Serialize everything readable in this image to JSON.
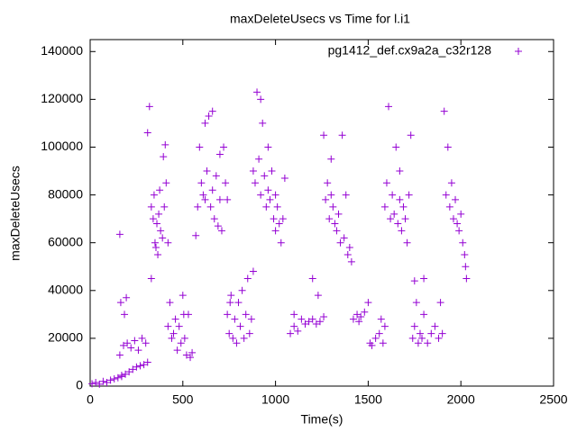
{
  "chart_data": {
    "type": "scatter",
    "title": "maxDeleteUsecs vs Time for l.i1",
    "x_label": "Time(s)",
    "y_label": "maxDeleteUsecs",
    "xlim": [
      0,
      2500
    ],
    "ylim": [
      0,
      145000
    ],
    "xticks": [
      0,
      500,
      1000,
      1500,
      2000,
      2500
    ],
    "yticks": [
      0,
      20000,
      40000,
      60000,
      80000,
      100000,
      120000,
      140000
    ],
    "legend": "upper right",
    "series": [
      {
        "name": "pg1412_def.cx9a2a_c32r128",
        "color": "#9400d3",
        "x": [
          10,
          30,
          50,
          70,
          90,
          110,
          130,
          150,
          170,
          190,
          210,
          230,
          250,
          270,
          290,
          310,
          160,
          170,
          160,
          180,
          200,
          220,
          240,
          260,
          280,
          300,
          165,
          185,
          195,
          310,
          320,
          330,
          340,
          350,
          360,
          370,
          380,
          390,
          400,
          410,
          420,
          345,
          365,
          375,
          395,
          405,
          330,
          355,
          420,
          430,
          440,
          450,
          460,
          470,
          480,
          490,
          500,
          510,
          520,
          530,
          540,
          550,
          505,
          570,
          580,
          590,
          600,
          610,
          620,
          630,
          640,
          650,
          660,
          670,
          680,
          690,
          700,
          710,
          720,
          730,
          740,
          620,
          660,
          700,
          740,
          750,
          760,
          770,
          780,
          790,
          800,
          810,
          820,
          830,
          840,
          850,
          860,
          870,
          880,
          755,
          880,
          890,
          900,
          910,
          920,
          930,
          940,
          950,
          960,
          970,
          980,
          990,
          1000,
          1010,
          1020,
          1030,
          1040,
          1050,
          920,
          960,
          1000,
          1080,
          1100,
          1120,
          1140,
          1160,
          1180,
          1200,
          1220,
          1240,
          1260,
          1200,
          1230,
          1100,
          1260,
          1270,
          1280,
          1290,
          1300,
          1310,
          1320,
          1330,
          1340,
          1350,
          1360,
          1370,
          1380,
          1390,
          1400,
          1410,
          1300,
          1420,
          1440,
          1460,
          1480,
          1500,
          1450,
          1510,
          1520,
          1540,
          1560,
          1580,
          1570,
          1590,
          1590,
          1600,
          1610,
          1620,
          1630,
          1640,
          1650,
          1660,
          1670,
          1680,
          1690,
          1700,
          1710,
          1720,
          1730,
          1670,
          1740,
          1750,
          1760,
          1770,
          1780,
          1790,
          1800,
          1820,
          1840,
          1860,
          1880,
          1890,
          1750,
          1800,
          1900,
          1910,
          1920,
          1930,
          1940,
          1950,
          1960,
          1970,
          1980,
          1990,
          2000,
          2010,
          2020,
          2030,
          2025
        ],
        "values": [
          1000,
          1500,
          800,
          2000,
          1500,
          2500,
          3000,
          3500,
          4000,
          5000,
          6000,
          7000,
          8000,
          8500,
          9000,
          10000,
          63500,
          4500,
          13000,
          17000,
          18000,
          16000,
          19000,
          15000,
          20000,
          18000,
          35000,
          30000,
          37000,
          106000,
          117000,
          75000,
          70000,
          60000,
          68000,
          72000,
          65000,
          62000,
          75000,
          85000,
          60000,
          80000,
          55000,
          82000,
          96000,
          101000,
          45000,
          58000,
          25000,
          35000,
          20000,
          22000,
          28000,
          15000,
          25000,
          18000,
          38000,
          20000,
          13000,
          30000,
          12000,
          14000,
          30000,
          63000,
          75000,
          100000,
          85000,
          80000,
          78000,
          90000,
          113000,
          75000,
          82000,
          70000,
          88000,
          67000,
          78000,
          65000,
          100000,
          85000,
          78000,
          110000,
          115000,
          97000,
          30000,
          22000,
          38000,
          20000,
          28000,
          18000,
          35000,
          25000,
          40000,
          20000,
          30000,
          45000,
          22000,
          28000,
          48000,
          35000,
          90000,
          85000,
          123000,
          95000,
          80000,
          110000,
          88000,
          75000,
          82000,
          78000,
          90000,
          70000,
          65000,
          75000,
          68000,
          60000,
          70000,
          87000,
          120000,
          100000,
          80000,
          22000,
          25000,
          23000,
          28000,
          26000,
          27000,
          28000,
          26000,
          27000,
          29000,
          45000,
          38000,
          30000,
          105000,
          78000,
          85000,
          70000,
          80000,
          75000,
          68000,
          65000,
          72000,
          60000,
          105000,
          62000,
          80000,
          55000,
          58000,
          52000,
          95000,
          28000,
          30000,
          29000,
          31000,
          35000,
          27000,
          18000,
          17000,
          20000,
          22000,
          18000,
          28000,
          25000,
          75000,
          85000,
          117000,
          70000,
          80000,
          72000,
          100000,
          68000,
          78000,
          65000,
          75000,
          70000,
          60000,
          80000,
          105000,
          90000,
          20000,
          25000,
          35000,
          18000,
          22000,
          20000,
          30000,
          18000,
          22000,
          25000,
          20000,
          35000,
          44000,
          45000,
          22000,
          115000,
          80000,
          100000,
          75000,
          85000,
          70000,
          78000,
          68000,
          65000,
          72000,
          60000,
          55000,
          45000,
          50000
        ]
      }
    ]
  }
}
